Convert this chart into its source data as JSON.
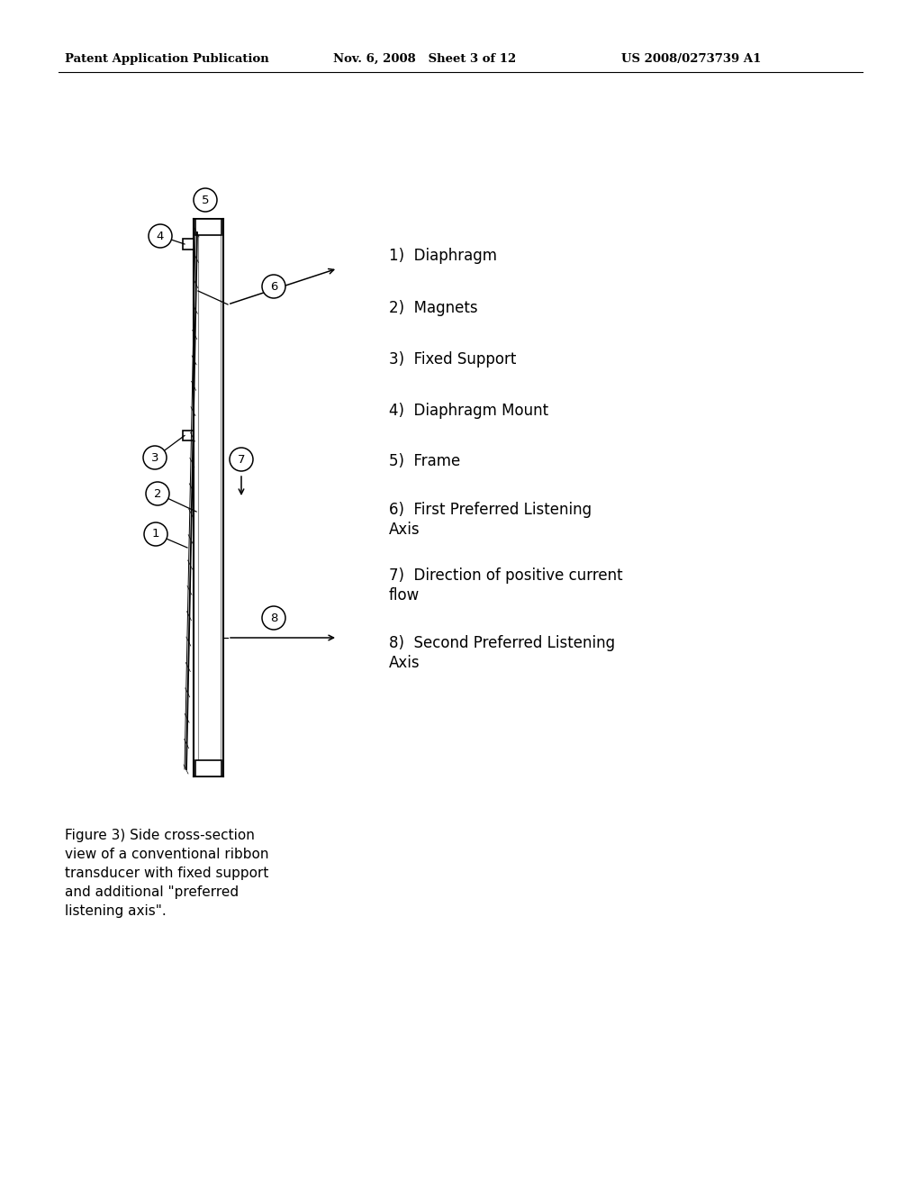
{
  "bg_color": "#ffffff",
  "header_left": "Patent Application Publication",
  "header_mid": "Nov. 6, 2008   Sheet 3 of 12",
  "header_right": "US 2008/0273739 A1",
  "caption": "Figure 3) Side cross-section\nview of a conventional ribbon\ntransducer with fixed support\nand additional \"preferred\nlistening axis\".",
  "legend_items": [
    "1)  Diaphragm",
    "2)  Magnets",
    "3)  Fixed Support",
    "4)  Diaphragm Mount",
    "5)  Frame",
    "6)  First Preferred Listening\nAxis",
    "7)  Direction of positive current\nflow",
    "8)  Second Preferred Listening\nAxis"
  ],
  "figsize": [
    10.24,
    13.2
  ],
  "dpi": 100
}
